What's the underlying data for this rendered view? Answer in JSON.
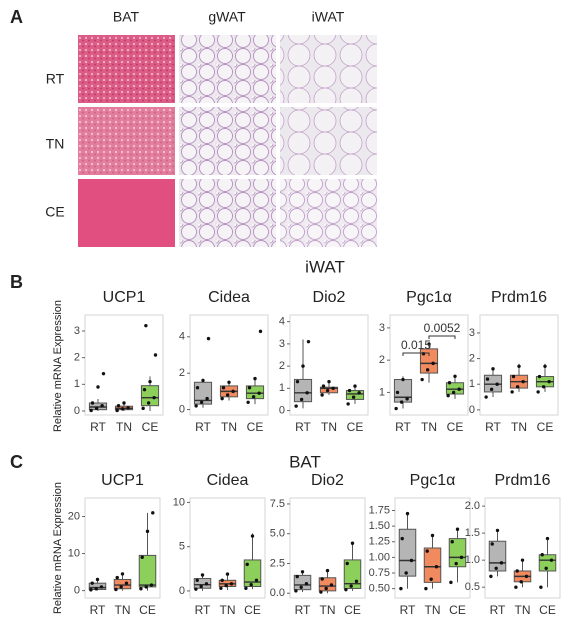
{
  "panel_a": {
    "label": "A",
    "columns": [
      "BAT",
      "gWAT",
      "iWAT"
    ],
    "rows": [
      "RT",
      "TN",
      "CE"
    ]
  },
  "panel_b": {
    "label": "B",
    "title": "iWAT",
    "y_label": "Relative mRNA Expression"
  },
  "panel_c": {
    "label": "C",
    "title": "BAT",
    "y_label": "Relative mRNA Expression"
  },
  "chart_data": [
    {
      "type": "box",
      "title": "UCP1",
      "categories": [
        "RT",
        "TN",
        "CE"
      ],
      "colors": [
        "#b5b5b5",
        "#f28a60",
        "#8ccf5b"
      ],
      "ylim": [
        -0.15,
        3.6
      ],
      "yticks": [
        0,
        1,
        2,
        3
      ],
      "boxes": [
        {
          "low": 0,
          "q1": 0.05,
          "median": 0.15,
          "q3": 0.3,
          "high": 0.45,
          "points": [
            0.02,
            0.1,
            0.2,
            0.3,
            0.9,
            1.4
          ]
        },
        {
          "low": 0,
          "q1": 0.05,
          "median": 0.1,
          "q3": 0.18,
          "high": 0.3,
          "points": [
            0.02,
            0.08,
            0.12,
            0.2,
            0.3
          ]
        },
        {
          "low": 0,
          "q1": 0.2,
          "median": 0.5,
          "q3": 0.95,
          "high": 1.3,
          "points": [
            0.1,
            0.3,
            0.5,
            0.8,
            1.1,
            2.1,
            3.2
          ]
        }
      ]
    },
    {
      "type": "box",
      "title": "Cidea",
      "categories": [
        "RT",
        "TN",
        "CE"
      ],
      "colors": [
        "#b5b5b5",
        "#f28a60",
        "#8ccf5b"
      ],
      "ylim": [
        -0.3,
        5.2
      ],
      "yticks": [
        0,
        2,
        4
      ],
      "boxes": [
        {
          "low": 0.1,
          "q1": 0.3,
          "median": 0.5,
          "q3": 1.5,
          "high": 1.7,
          "points": [
            0.2,
            0.4,
            0.6,
            1.2,
            1.6,
            3.9
          ]
        },
        {
          "low": 0.5,
          "q1": 0.7,
          "median": 1.0,
          "q3": 1.3,
          "high": 1.6,
          "points": [
            0.6,
            0.8,
            1.0,
            1.2,
            1.5
          ]
        },
        {
          "low": 0.3,
          "q1": 0.6,
          "median": 0.9,
          "q3": 1.3,
          "high": 1.8,
          "points": [
            0.4,
            0.7,
            0.9,
            1.2,
            1.7,
            4.3
          ]
        }
      ]
    },
    {
      "type": "box",
      "title": "Dio2",
      "categories": [
        "RT",
        "TN",
        "CE"
      ],
      "colors": [
        "#b5b5b5",
        "#f28a60",
        "#8ccf5b"
      ],
      "ylim": [
        -0.2,
        4.3
      ],
      "yticks": [
        0,
        1,
        2,
        3,
        4
      ],
      "boxes": [
        {
          "low": 0.1,
          "q1": 0.4,
          "median": 0.8,
          "q3": 1.4,
          "high": 3.2,
          "points": [
            0.2,
            0.5,
            0.8,
            1.3,
            2.0,
            3.1
          ]
        },
        {
          "low": 0.7,
          "q1": 0.8,
          "median": 1.0,
          "q3": 1.05,
          "high": 1.3,
          "points": [
            0.7,
            0.9,
            1.0,
            1.1,
            1.3
          ]
        },
        {
          "low": 0.3,
          "q1": 0.5,
          "median": 0.75,
          "q3": 0.9,
          "high": 1.1,
          "points": [
            0.3,
            0.6,
            0.8,
            0.9,
            1.1
          ]
        }
      ]
    },
    {
      "type": "box",
      "title": "Pgc1α",
      "categories": [
        "RT",
        "TN",
        "CE"
      ],
      "colors": [
        "#b5b5b5",
        "#f28a60",
        "#8ccf5b"
      ],
      "ylim": [
        0.3,
        3.4
      ],
      "yticks": [
        1,
        2,
        3
      ],
      "annotations": [
        "0.015",
        "0.0052"
      ],
      "boxes": [
        {
          "low": 0.5,
          "q1": 0.7,
          "median": 0.85,
          "q3": 1.4,
          "high": 1.5,
          "points": [
            0.5,
            0.7,
            0.8,
            1.0,
            1.4
          ]
        },
        {
          "low": 1.3,
          "q1": 1.6,
          "median": 1.9,
          "q3": 2.35,
          "high": 2.55,
          "points": [
            1.4,
            1.7,
            1.9,
            2.2,
            2.5
          ]
        },
        {
          "low": 0.8,
          "q1": 0.95,
          "median": 1.1,
          "q3": 1.3,
          "high": 1.55,
          "points": [
            0.9,
            1.0,
            1.1,
            1.3,
            1.5
          ]
        }
      ]
    },
    {
      "type": "box",
      "title": "Prdm16",
      "categories": [
        "RT",
        "TN",
        "CE"
      ],
      "colors": [
        "#b5b5b5",
        "#f28a60",
        "#8ccf5b"
      ],
      "ylim": [
        -0.2,
        3.7
      ],
      "yticks": [
        0,
        1,
        2,
        3
      ],
      "boxes": [
        {
          "low": 0.5,
          "q1": 0.7,
          "median": 1.0,
          "q3": 1.35,
          "high": 1.6,
          "points": [
            0.5,
            0.8,
            1.0,
            1.2,
            1.6
          ]
        },
        {
          "low": 0.7,
          "q1": 0.85,
          "median": 1.1,
          "q3": 1.35,
          "high": 1.8,
          "points": [
            0.7,
            0.9,
            1.1,
            1.3,
            1.7
          ]
        },
        {
          "low": 0.7,
          "q1": 0.9,
          "median": 1.1,
          "q3": 1.3,
          "high": 1.8,
          "points": [
            0.7,
            0.9,
            1.1,
            1.3,
            1.7
          ]
        }
      ]
    },
    {
      "type": "box",
      "title": "UCP1",
      "categories": [
        "RT",
        "TN",
        "CE"
      ],
      "colors": [
        "#b5b5b5",
        "#f28a60",
        "#8ccf5b"
      ],
      "ylim": [
        -2,
        25
      ],
      "yticks": [
        0,
        10,
        20
      ],
      "boxes": [
        {
          "low": 0,
          "q1": 0.3,
          "median": 0.8,
          "q3": 2,
          "high": 3,
          "points": [
            0.2,
            0.5,
            1,
            2,
            3
          ]
        },
        {
          "low": 0,
          "q1": 0.5,
          "median": 1.5,
          "q3": 3,
          "high": 4.5,
          "points": [
            0.3,
            1,
            2,
            3.5,
            4.5
          ]
        },
        {
          "low": 0,
          "q1": 1,
          "median": 1.5,
          "q3": 9.5,
          "high": 21,
          "points": [
            0.5,
            1,
            1.5,
            9,
            16,
            21
          ]
        }
      ]
    },
    {
      "type": "box",
      "title": "Cidea",
      "categories": [
        "RT",
        "TN",
        "CE"
      ],
      "colors": [
        "#b5b5b5",
        "#f28a60",
        "#8ccf5b"
      ],
      "ylim": [
        -0.8,
        10.5
      ],
      "yticks": [
        0,
        5,
        10
      ],
      "boxes": [
        {
          "low": 0,
          "q1": 0.3,
          "median": 0.7,
          "q3": 1.4,
          "high": 1.8,
          "points": [
            0.2,
            0.5,
            0.8,
            1.2,
            1.8
          ]
        },
        {
          "low": 0.1,
          "q1": 0.5,
          "median": 0.8,
          "q3": 1.2,
          "high": 2,
          "points": [
            0.3,
            0.6,
            0.8,
            1.2,
            1.9
          ]
        },
        {
          "low": 0.2,
          "q1": 0.5,
          "median": 1,
          "q3": 3.5,
          "high": 6.5,
          "points": [
            0.3,
            0.7,
            1.2,
            3,
            6.2
          ]
        }
      ]
    },
    {
      "type": "box",
      "title": "Dio2",
      "categories": [
        "RT",
        "TN",
        "CE"
      ],
      "colors": [
        "#b5b5b5",
        "#f28a60",
        "#8ccf5b"
      ],
      "ylim": [
        -0.4,
        8
      ],
      "yticks": [
        {
          "value": 0,
          "label": "0.0"
        },
        2.5,
        {
          "value": 5,
          "label": "5.0"
        },
        7.5
      ],
      "boxes": [
        {
          "low": 0.1,
          "q1": 0.3,
          "median": 0.7,
          "q3": 1.5,
          "high": 1.8,
          "points": [
            0.2,
            0.5,
            0.8,
            1.4,
            1.8
          ]
        },
        {
          "low": 0,
          "q1": 0.2,
          "median": 0.6,
          "q3": 1.3,
          "high": 2,
          "points": [
            0.1,
            0.4,
            0.7,
            1.2,
            1.9
          ]
        },
        {
          "low": 0.2,
          "q1": 0.4,
          "median": 0.8,
          "q3": 2.8,
          "high": 4.2,
          "points": [
            0.3,
            0.6,
            1.0,
            2.5,
            4.2
          ]
        }
      ]
    },
    {
      "type": "box",
      "title": "Pgc1α",
      "categories": [
        "RT",
        "TN",
        "CE"
      ],
      "colors": [
        "#b5b5b5",
        "#f28a60",
        "#8ccf5b"
      ],
      "ylim": [
        0.35,
        1.95
      ],
      "yticks": [
        {
          "value": 0.5,
          "label": "0.50"
        },
        0.75,
        {
          "value": 1,
          "label": "1.00"
        },
        1.25,
        {
          "value": 1.5,
          "label": "1.50"
        },
        1.75
      ],
      "boxes": [
        {
          "low": 0.5,
          "q1": 0.7,
          "median": 0.95,
          "q3": 1.45,
          "high": 1.7,
          "points": [
            0.5,
            0.75,
            0.95,
            1.3,
            1.7
          ]
        },
        {
          "low": 0.5,
          "q1": 0.6,
          "median": 0.85,
          "q3": 1.15,
          "high": 1.35,
          "points": [
            0.5,
            0.65,
            0.85,
            1.1,
            1.35
          ]
        },
        {
          "low": 0.6,
          "q1": 0.85,
          "median": 1.0,
          "q3": 1.3,
          "high": 1.45,
          "points": [
            0.6,
            0.9,
            1.0,
            1.25,
            1.45
          ]
        }
      ]
    },
    {
      "type": "box",
      "title": "Prdm16",
      "categories": [
        "RT",
        "TN",
        "CE"
      ],
      "colors": [
        "#b5b5b5",
        "#f28a60",
        "#8ccf5b"
      ],
      "ylim": [
        0.3,
        2.15
      ],
      "yticks": [
        0.5,
        {
          "value": 1,
          "label": "1.0"
        },
        1.5,
        {
          "value": 2,
          "label": "2.0"
        }
      ],
      "boxes": [
        {
          "low": 0.7,
          "q1": 0.8,
          "median": 0.95,
          "q3": 1.35,
          "high": 1.55,
          "points": [
            0.7,
            0.85,
            0.95,
            1.3,
            1.55
          ]
        },
        {
          "low": 0.5,
          "q1": 0.6,
          "median": 0.7,
          "q3": 0.8,
          "high": 1.0,
          "points": [
            0.5,
            0.6,
            0.7,
            0.8,
            1.0
          ]
        },
        {
          "low": 0.5,
          "q1": 0.8,
          "median": 1.0,
          "q3": 1.1,
          "high": 1.4,
          "points": [
            0.5,
            0.85,
            1.0,
            1.1,
            1.4
          ]
        }
      ]
    }
  ]
}
